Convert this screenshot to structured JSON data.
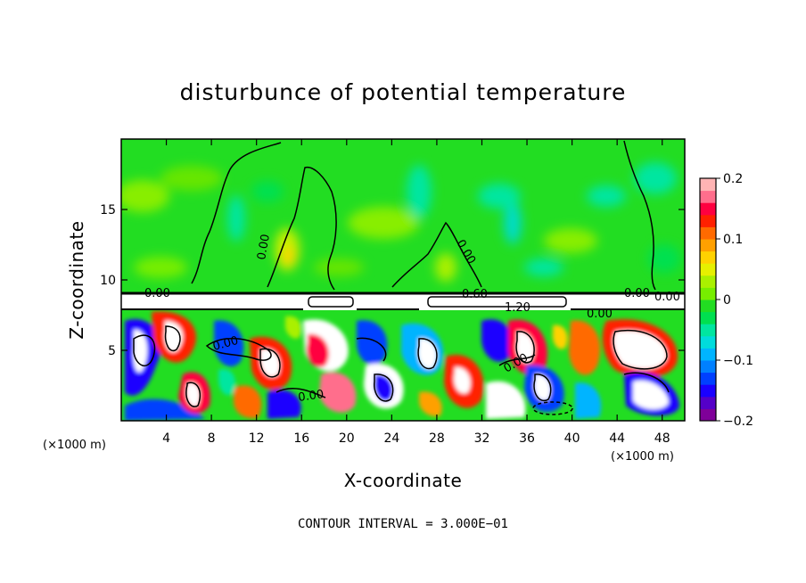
{
  "chart_data": {
    "type": "heatmap",
    "title": "disturbunce of potential temperature",
    "xlabel": "X-coordinate",
    "ylabel": "Z-coordinate",
    "x_unit": "(×1000 m)",
    "z_unit": "(×1000 m)",
    "xlim": [
      0,
      50
    ],
    "ylim": [
      0,
      20
    ],
    "x_ticks": [
      4,
      8,
      12,
      16,
      20,
      24,
      28,
      32,
      36,
      40,
      44,
      48
    ],
    "y_ticks": [
      5,
      10,
      15
    ],
    "colorbar": {
      "range": [
        -0.2,
        0.2
      ],
      "ticks": [
        0.2,
        0.1,
        0,
        -0.1,
        -0.2
      ],
      "tick_labels": [
        "0.2",
        "0.1",
        "0",
        "−0.1",
        "−0.2"
      ],
      "colors": [
        "#7f0099",
        "#5500c8",
        "#1a00ff",
        "#0040ff",
        "#0080ff",
        "#00b4ff",
        "#00dcdc",
        "#00e6a0",
        "#00e050",
        "#22dd22",
        "#77ee00",
        "#aaf000",
        "#e6f000",
        "#ffd200",
        "#ffa000",
        "#ff6a00",
        "#ff2000",
        "#ff0040",
        "#ff6e8c",
        "#ffb4b4"
      ]
    },
    "contour_labels": [
      "0.00",
      "0.00",
      "0.00",
      "0.00",
      "0.00",
      "0.00",
      "0.00",
      "0.00",
      "0.60",
      "1.20",
      "0.00"
    ],
    "contour_interval": "CONTOUR INTERVAL = 3.000E−01"
  }
}
